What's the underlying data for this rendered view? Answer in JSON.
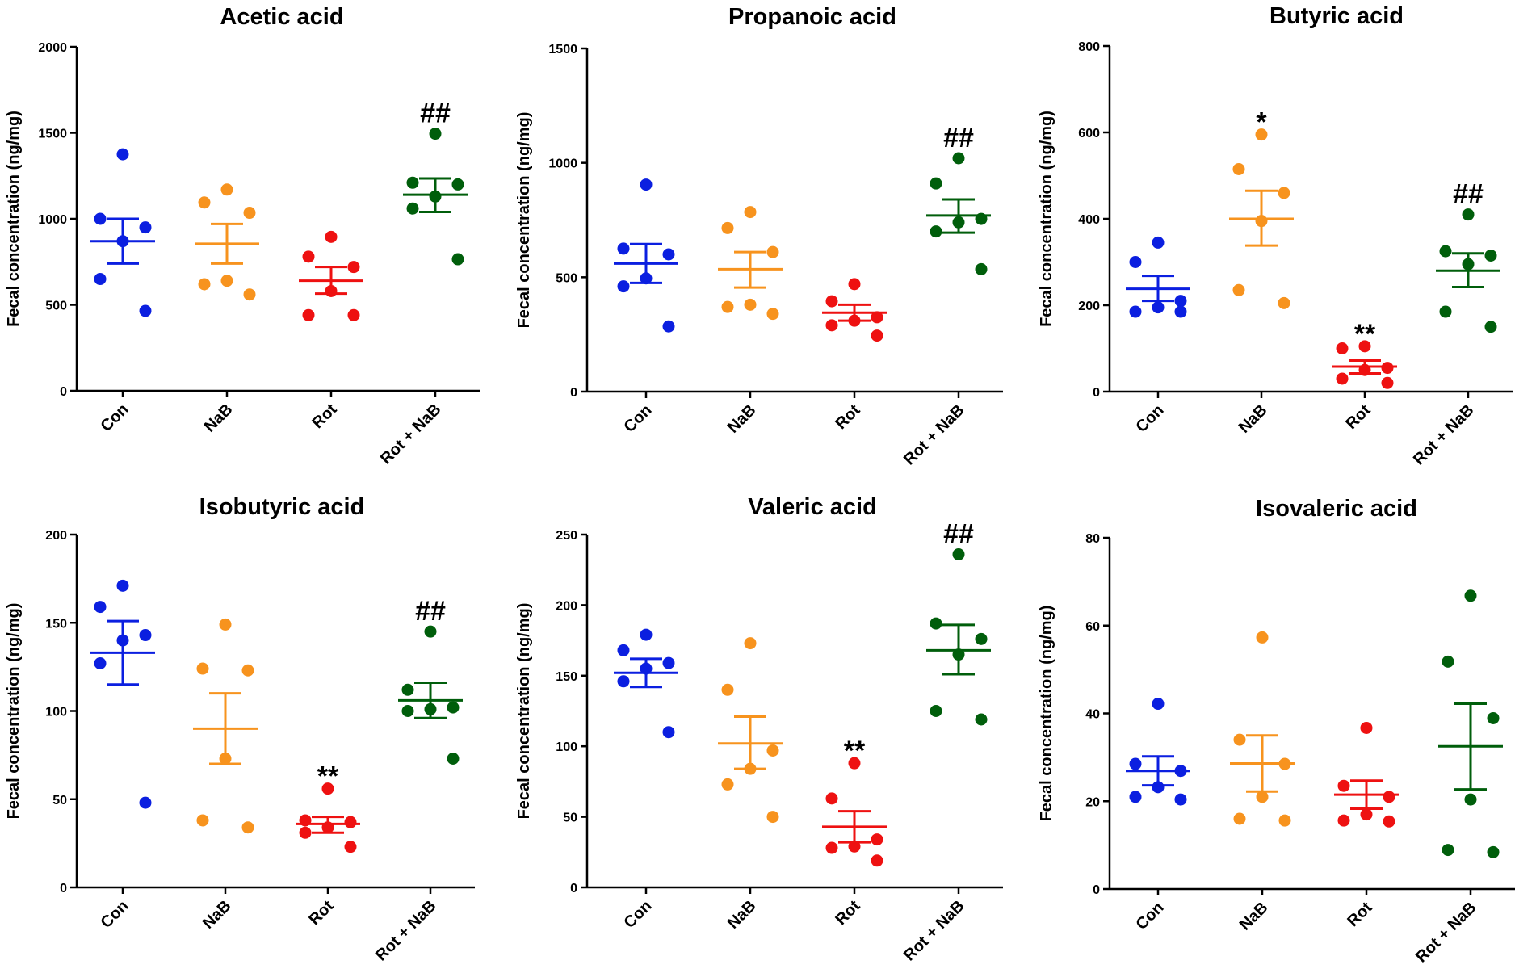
{
  "chart_data": [
    {
      "type": "scatter",
      "title": "Acetic acid",
      "ylabel": "Fecal concentration (ng/mg)",
      "categories": [
        "Con",
        "NaB",
        "Rot",
        "Rot + NaB"
      ],
      "ylim": [
        0,
        2000
      ],
      "yticks": [
        0,
        500,
        1000,
        1500,
        2000
      ],
      "groups": [
        {
          "points": [
            1375,
            1000,
            950,
            870,
            650,
            465
          ],
          "mean": 870,
          "sem_lower": 740,
          "sem_upper": 1000,
          "annotation": ""
        },
        {
          "points": [
            1170,
            1095,
            1035,
            640,
            620,
            560
          ],
          "mean": 855,
          "sem_lower": 740,
          "sem_upper": 970,
          "annotation": ""
        },
        {
          "points": [
            895,
            780,
            720,
            580,
            440,
            440
          ],
          "mean": 640,
          "sem_lower": 565,
          "sem_upper": 720,
          "annotation": ""
        },
        {
          "points": [
            1495,
            1210,
            1200,
            1130,
            1060,
            765
          ],
          "mean": 1140,
          "sem_lower": 1040,
          "sem_upper": 1235,
          "annotation": "##"
        }
      ]
    },
    {
      "type": "scatter",
      "title": "Propanoic acid",
      "ylabel": "Fecal concentration (ng/mg)",
      "categories": [
        "Con",
        "NaB",
        "Rot",
        "Rot + NaB"
      ],
      "ylim": [
        0,
        1500
      ],
      "yticks": [
        0,
        500,
        1000,
        1500
      ],
      "groups": [
        {
          "points": [
            905,
            625,
            600,
            495,
            460,
            285
          ],
          "mean": 560,
          "sem_lower": 475,
          "sem_upper": 645,
          "annotation": ""
        },
        {
          "points": [
            785,
            715,
            610,
            380,
            370,
            340
          ],
          "mean": 535,
          "sem_lower": 455,
          "sem_upper": 610,
          "annotation": ""
        },
        {
          "points": [
            470,
            395,
            325,
            310,
            290,
            245
          ],
          "mean": 345,
          "sem_lower": 310,
          "sem_upper": 380,
          "annotation": ""
        },
        {
          "points": [
            1020,
            910,
            755,
            740,
            700,
            535
          ],
          "mean": 770,
          "sem_lower": 695,
          "sem_upper": 840,
          "annotation": "##"
        }
      ]
    },
    {
      "type": "scatter",
      "title": "Butyric acid",
      "ylabel": "Fecal concentration (ng/mg)",
      "categories": [
        "Con",
        "NaB",
        "Rot",
        "Rot + NaB"
      ],
      "ylim": [
        0,
        800
      ],
      "yticks": [
        0,
        200,
        400,
        600,
        800
      ],
      "groups": [
        {
          "points": [
            345,
            300,
            210,
            195,
            185,
            185
          ],
          "mean": 238,
          "sem_lower": 210,
          "sem_upper": 268,
          "annotation": ""
        },
        {
          "points": [
            595,
            515,
            460,
            395,
            235,
            205
          ],
          "mean": 400,
          "sem_lower": 338,
          "sem_upper": 465,
          "annotation": "*"
        },
        {
          "points": [
            105,
            100,
            55,
            50,
            30,
            20
          ],
          "mean": 58,
          "sem_lower": 42,
          "sem_upper": 72,
          "annotation": "**"
        },
        {
          "points": [
            410,
            325,
            315,
            295,
            185,
            150
          ],
          "mean": 280,
          "sem_lower": 242,
          "sem_upper": 320,
          "annotation": "##"
        }
      ]
    },
    {
      "type": "scatter",
      "title": "Isobutyric acid",
      "ylabel": "Fecal concentration (ng/mg)",
      "categories": [
        "Con",
        "NaB",
        "Rot",
        "Rot + NaB"
      ],
      "ylim": [
        0,
        200
      ],
      "yticks": [
        0,
        50,
        100,
        150,
        200
      ],
      "groups": [
        {
          "points": [
            171,
            159,
            143,
            140,
            127,
            48
          ],
          "mean": 133,
          "sem_lower": 115,
          "sem_upper": 151,
          "annotation": ""
        },
        {
          "points": [
            149,
            124,
            123,
            73,
            38,
            34
          ],
          "mean": 90,
          "sem_lower": 70,
          "sem_upper": 110,
          "annotation": ""
        },
        {
          "points": [
            56,
            38,
            37,
            34,
            31,
            23
          ],
          "mean": 36,
          "sem_lower": 31,
          "sem_upper": 40,
          "annotation": "**"
        },
        {
          "points": [
            145,
            112,
            102,
            101,
            100,
            73
          ],
          "mean": 106,
          "sem_lower": 96,
          "sem_upper": 116,
          "annotation": "##"
        }
      ]
    },
    {
      "type": "scatter",
      "title": "Valeric acid",
      "ylabel": "Fecal concentration (ng/mg)",
      "categories": [
        "Con",
        "NaB",
        "Rot",
        "Rot + NaB"
      ],
      "ylim": [
        0,
        250
      ],
      "yticks": [
        0,
        50,
        100,
        150,
        200,
        250
      ],
      "groups": [
        {
          "points": [
            179,
            168,
            159,
            155,
            146,
            110
          ],
          "mean": 152,
          "sem_lower": 142,
          "sem_upper": 162,
          "annotation": ""
        },
        {
          "points": [
            173,
            140,
            97,
            84,
            73,
            50
          ],
          "mean": 102,
          "sem_lower": 84,
          "sem_upper": 121,
          "annotation": ""
        },
        {
          "points": [
            88,
            63,
            34,
            29,
            28,
            19
          ],
          "mean": 43,
          "sem_lower": 32,
          "sem_upper": 54,
          "annotation": "**"
        },
        {
          "points": [
            236,
            187,
            176,
            165,
            125,
            119
          ],
          "mean": 168,
          "sem_lower": 151,
          "sem_upper": 186,
          "annotation": "##"
        }
      ]
    },
    {
      "type": "scatter",
      "title": "Isovaleric acid",
      "ylabel": "Fecal concentration (ng/mg)",
      "categories": [
        "Con",
        "NaB",
        "Rot",
        "Rot + NaB"
      ],
      "ylim": [
        0,
        80
      ],
      "yticks": [
        0,
        20,
        40,
        60,
        80
      ],
      "groups": [
        {
          "points": [
            42.2,
            28.5,
            26.9,
            23.2,
            21,
            20.4
          ],
          "mean": 26.9,
          "sem_lower": 23.6,
          "sem_upper": 30.2,
          "annotation": ""
        },
        {
          "points": [
            57.3,
            34,
            28.5,
            21,
            16,
            15.6
          ],
          "mean": 28.6,
          "sem_lower": 22.2,
          "sem_upper": 35,
          "annotation": ""
        },
        {
          "points": [
            36.7,
            23.5,
            21,
            17,
            15.6,
            15.4
          ],
          "mean": 21.5,
          "sem_lower": 18.3,
          "sem_upper": 24.7,
          "annotation": ""
        },
        {
          "points": [
            66.8,
            51.8,
            38.9,
            20.4,
            8.9,
            8.4
          ],
          "mean": 32.5,
          "sem_lower": 22.7,
          "sem_upper": 42.2,
          "annotation": ""
        }
      ]
    }
  ],
  "colors": {
    "group_colors": [
      "#0b1fe0",
      "#f7931e",
      "#ee1111",
      "#005e0b"
    ],
    "axis": "#000000"
  }
}
